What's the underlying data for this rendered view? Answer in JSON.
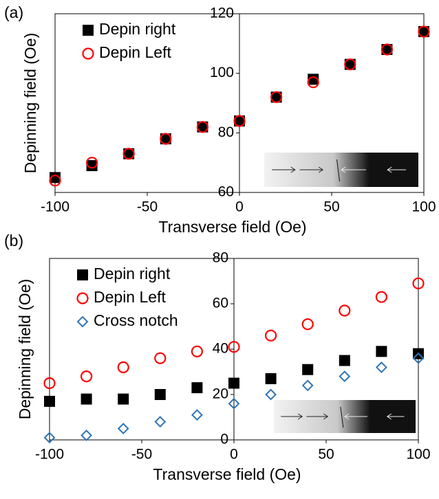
{
  "chart_data": [
    {
      "type": "scatter",
      "panel_label": "(a)",
      "xlabel": "Transverse field (Oe)",
      "ylabel": "Depinning field (Oe)",
      "x": [
        -100,
        -80,
        -60,
        -40,
        -20,
        0,
        20,
        40,
        60,
        80,
        100
      ],
      "series": [
        {
          "name": "Depin right",
          "color": "#000000",
          "marker": "square",
          "values": [
            65,
            69,
            73,
            78,
            82,
            84,
            92,
            98,
            103,
            108,
            114
          ]
        },
        {
          "name": "Depin Left",
          "color": "#ff0000",
          "marker": "circle",
          "values": [
            64,
            70,
            73,
            78,
            82,
            84,
            92,
            97,
            103,
            108,
            114
          ]
        }
      ],
      "xlim": [
        -100,
        100
      ],
      "xticks": [
        -100,
        -50,
        0,
        50,
        100
      ],
      "ylim": [
        60,
        120
      ],
      "yticks": [
        60,
        80,
        100,
        120
      ],
      "legend": "upper left"
    },
    {
      "type": "scatter",
      "panel_label": "(b)",
      "xlabel": "Transverse field (Oe)",
      "ylabel": "Depinning field (Oe)",
      "x": [
        -100,
        -80,
        -60,
        -40,
        -20,
        0,
        20,
        40,
        60,
        80,
        100
      ],
      "series": [
        {
          "name": "Depin right",
          "color": "#000000",
          "marker": "square",
          "values": [
            17,
            18,
            18,
            20,
            23,
            25,
            27,
            31,
            35,
            39,
            38
          ]
        },
        {
          "name": "Depin Left",
          "color": "#ff0000",
          "marker": "circle",
          "values": [
            25,
            28,
            32,
            36,
            39,
            41,
            46,
            51,
            57,
            63,
            69
          ]
        },
        {
          "name": "Cross notch",
          "color": "#2e75b6",
          "marker": "diamond",
          "values": [
            1,
            2,
            5,
            8,
            11,
            16,
            20,
            24,
            28,
            32,
            36
          ]
        }
      ],
      "xlim": [
        -100,
        100
      ],
      "xticks": [
        -100,
        -50,
        0,
        50,
        100
      ],
      "ylim": [
        0,
        80
      ],
      "yticks": [
        0,
        20,
        40,
        60,
        80
      ],
      "legend": "upper left"
    }
  ]
}
